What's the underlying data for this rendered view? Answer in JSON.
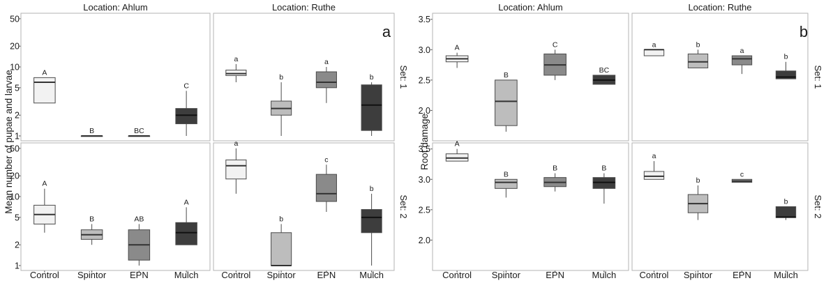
{
  "colors": {
    "Control": "#f2f2f2",
    "Spintor": "#bdbdbd",
    "EPN": "#8a8a8a",
    "Mulch": "#3d3d3d",
    "panel_border": "#b3b3b3",
    "median_light": "#333333",
    "median_dark": "#111111"
  },
  "chart_data": [
    {
      "type": "boxplot",
      "panel_label": "a",
      "ylabel": "Mean number of pupae and larvae",
      "yscale": "log",
      "ylim": [
        0.85,
        60
      ],
      "yticks": [
        1,
        2,
        5,
        10,
        20,
        50
      ],
      "categories": [
        "Control",
        "Spintor",
        "EPN",
        "Mulch"
      ],
      "columns": [
        "Location: Ahlum",
        "Location: Ruthe"
      ],
      "rows": [
        "Set: 1",
        "Set: 2"
      ],
      "grid": false,
      "facets": [
        {
          "location": "Location: Ahlum",
          "set": "Set: 1",
          "boxes": [
            {
              "category": "Control",
              "min": 3,
              "q1": 3,
              "median": 6,
              "q3": 7,
              "max": 7,
              "letter": "A"
            },
            {
              "category": "Spintor",
              "min": 1,
              "q1": 1,
              "median": 1,
              "q3": 1,
              "max": 1,
              "letter": "B"
            },
            {
              "category": "EPN",
              "min": 1,
              "q1": 1,
              "median": 1,
              "q3": 1,
              "max": 1,
              "letter": "BC"
            },
            {
              "category": "Mulch",
              "min": 1,
              "q1": 1.5,
              "median": 2,
              "q3": 2.5,
              "max": 4.5,
              "letter": "C"
            }
          ]
        },
        {
          "location": "Location: Ruthe",
          "set": "Set: 1",
          "boxes": [
            {
              "category": "Control",
              "min": 6,
              "q1": 7.5,
              "median": 8,
              "q3": 9,
              "max": 11,
              "letter": "a"
            },
            {
              "category": "Spintor",
              "min": 1,
              "q1": 2,
              "median": 2.5,
              "q3": 3.2,
              "max": 6,
              "letter": "b"
            },
            {
              "category": "EPN",
              "min": 3,
              "q1": 5,
              "median": 6,
              "q3": 8.5,
              "max": 10,
              "letter": "a"
            },
            {
              "category": "Mulch",
              "min": 1,
              "q1": 1.2,
              "median": 2.8,
              "q3": 5.5,
              "max": 6,
              "letter": "b"
            }
          ]
        },
        {
          "location": "Location: Ahlum",
          "set": "Set: 2",
          "boxes": [
            {
              "category": "Control",
              "min": 3,
              "q1": 4,
              "median": 5.5,
              "q3": 7.5,
              "max": 13,
              "letter": "A"
            },
            {
              "category": "Spintor",
              "min": 2,
              "q1": 2.4,
              "median": 2.8,
              "q3": 3.3,
              "max": 4,
              "letter": "B"
            },
            {
              "category": "EPN",
              "min": 1,
              "q1": 1.2,
              "median": 2,
              "q3": 3.3,
              "max": 4,
              "letter": "AB"
            },
            {
              "category": "Mulch",
              "min": 2,
              "q1": 2,
              "median": 3,
              "q3": 4.2,
              "max": 7,
              "letter": "A"
            }
          ]
        },
        {
          "location": "Location: Ruthe",
          "set": "Set: 2",
          "boxes": [
            {
              "category": "Control",
              "min": 11,
              "q1": 18,
              "median": 28,
              "q3": 34,
              "max": 50,
              "letter": "a"
            },
            {
              "category": "Spintor",
              "min": 1,
              "q1": 1,
              "median": 1,
              "q3": 3,
              "max": 4,
              "letter": "b"
            },
            {
              "category": "EPN",
              "min": 6,
              "q1": 8.5,
              "median": 11,
              "q3": 21,
              "max": 29,
              "letter": "c"
            },
            {
              "category": "Mulch",
              "min": 1,
              "q1": 3,
              "median": 5,
              "q3": 6.5,
              "max": 11,
              "letter": "b"
            }
          ]
        }
      ]
    },
    {
      "type": "boxplot",
      "panel_label": "b",
      "ylabel": "Root damage",
      "yscale": "linear",
      "ylim": [
        1.5,
        3.6
      ],
      "yticks": [
        2.0,
        2.5,
        3.0,
        3.5
      ],
      "categories": [
        "Control",
        "Spintor",
        "EPN",
        "Mulch"
      ],
      "columns": [
        "Location: Ahlum",
        "Location: Ruthe"
      ],
      "rows": [
        "Set: 1",
        "Set: 2"
      ],
      "grid": false,
      "facets": [
        {
          "location": "Location: Ahlum",
          "set": "Set: 1",
          "boxes": [
            {
              "category": "Control",
              "min": 2.7,
              "q1": 2.8,
              "median": 2.85,
              "q3": 2.9,
              "max": 2.95,
              "letter": "A"
            },
            {
              "category": "Spintor",
              "min": 1.65,
              "q1": 1.75,
              "median": 2.15,
              "q3": 2.5,
              "max": 2.5,
              "letter": "B"
            },
            {
              "category": "EPN",
              "min": 2.5,
              "q1": 2.58,
              "median": 2.75,
              "q3": 2.93,
              "max": 3.0,
              "letter": "C"
            },
            {
              "category": "Mulch",
              "min": 2.43,
              "q1": 2.43,
              "median": 2.5,
              "q3": 2.58,
              "max": 2.58,
              "letter": "BC"
            }
          ]
        },
        {
          "location": "Location: Ruthe",
          "set": "Set: 1",
          "boxes": [
            {
              "category": "Control",
              "min": 2.9,
              "q1": 2.9,
              "median": 3.0,
              "q3": 3.0,
              "max": 3.0,
              "letter": "a"
            },
            {
              "category": "Spintor",
              "min": 2.7,
              "q1": 2.7,
              "median": 2.8,
              "q3": 2.93,
              "max": 3.0,
              "letter": "b"
            },
            {
              "category": "EPN",
              "min": 2.6,
              "q1": 2.75,
              "median": 2.85,
              "q3": 2.9,
              "max": 2.9,
              "letter": "a"
            },
            {
              "category": "Mulch",
              "min": 2.52,
              "q1": 2.52,
              "median": 2.55,
              "q3": 2.65,
              "max": 2.8,
              "letter": "b"
            }
          ]
        },
        {
          "location": "Location: Ahlum",
          "set": "Set: 2",
          "boxes": [
            {
              "category": "Control",
              "min": 3.3,
              "q1": 3.3,
              "median": 3.35,
              "q3": 3.42,
              "max": 3.5,
              "letter": "A"
            },
            {
              "category": "Spintor",
              "min": 2.7,
              "q1": 2.85,
              "median": 2.95,
              "q3": 3.0,
              "max": 3.0,
              "letter": "B"
            },
            {
              "category": "EPN",
              "min": 2.8,
              "q1": 2.88,
              "median": 2.95,
              "q3": 3.03,
              "max": 3.1,
              "letter": "B"
            },
            {
              "category": "Mulch",
              "min": 2.6,
              "q1": 2.85,
              "median": 2.95,
              "q3": 3.03,
              "max": 3.1,
              "letter": "B"
            }
          ]
        },
        {
          "location": "Location: Ruthe",
          "set": "Set: 2",
          "boxes": [
            {
              "category": "Control",
              "min": 3.0,
              "q1": 3.0,
              "median": 3.05,
              "q3": 3.13,
              "max": 3.3,
              "letter": "a"
            },
            {
              "category": "Spintor",
              "min": 2.33,
              "q1": 2.45,
              "median": 2.6,
              "q3": 2.75,
              "max": 2.9,
              "letter": "b"
            },
            {
              "category": "EPN",
              "min": 2.95,
              "q1": 2.95,
              "median": 2.97,
              "q3": 3.0,
              "max": 3.0,
              "letter": "c"
            },
            {
              "category": "Mulch",
              "min": 2.33,
              "q1": 2.37,
              "median": 2.38,
              "q3": 2.55,
              "max": 2.55,
              "letter": "b"
            }
          ]
        }
      ]
    }
  ]
}
